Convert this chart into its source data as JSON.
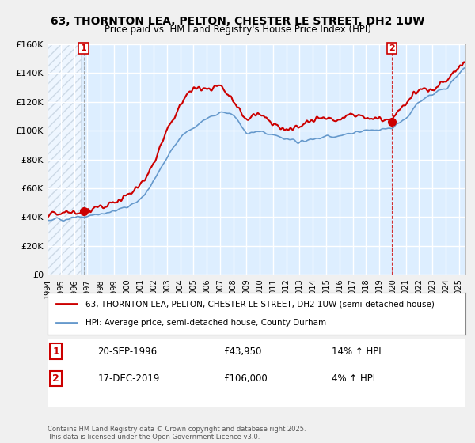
{
  "title": "63, THORNTON LEA, PELTON, CHESTER LE STREET, DH2 1UW",
  "subtitle": "Price paid vs. HM Land Registry's House Price Index (HPI)",
  "legend_line1": "63, THORNTON LEA, PELTON, CHESTER LE STREET, DH2 1UW (semi-detached house)",
  "legend_line2": "HPI: Average price, semi-detached house, County Durham",
  "annotation1_label": "1",
  "annotation1_date": "20-SEP-1996",
  "annotation1_price": "£43,950",
  "annotation1_hpi": "14% ↑ HPI",
  "annotation2_label": "2",
  "annotation2_date": "17-DEC-2019",
  "annotation2_price": "£106,000",
  "annotation2_hpi": "4% ↑ HPI",
  "footnote": "Contains HM Land Registry data © Crown copyright and database right 2025.\nThis data is licensed under the Open Government Licence v3.0.",
  "price_color": "#cc0000",
  "hpi_color": "#6699cc",
  "bg_color": "#ddeeff",
  "plot_bg_color": "#ddeeff",
  "hatch_color": "#bbccdd",
  "grid_color": "#ffffff",
  "ylim": [
    0,
    160000
  ],
  "yticks": [
    0,
    20000,
    40000,
    60000,
    80000,
    100000,
    120000,
    140000,
    160000
  ],
  "ytick_labels": [
    "£0",
    "£20K",
    "£40K",
    "£60K",
    "£80K",
    "£100K",
    "£120K",
    "£140K",
    "£160K"
  ],
  "sale1_x": 1996.72,
  "sale1_y": 43950,
  "sale2_x": 2019.96,
  "sale2_y": 106000,
  "xmin": 1994.0,
  "xmax": 2025.5
}
